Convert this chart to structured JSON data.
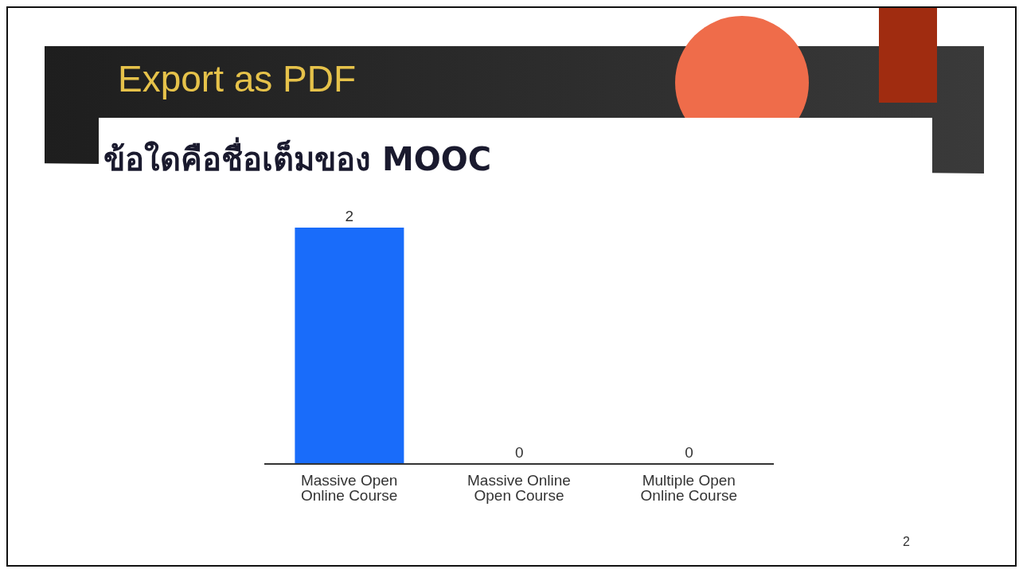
{
  "chart_data": {
    "type": "bar",
    "title": "Export as PDF",
    "subtitle": "ข้อใดคือชื่อเต็มของ MOOC",
    "categories": [
      "Massive Open Online Course",
      "Massive Online Open Course",
      "Multiple Open Online Course"
    ],
    "values": [
      2,
      0,
      0
    ],
    "color": "#196cfa",
    "data_labels": true,
    "grid": false,
    "legend": false,
    "annotations": [
      "2"
    ]
  }
}
